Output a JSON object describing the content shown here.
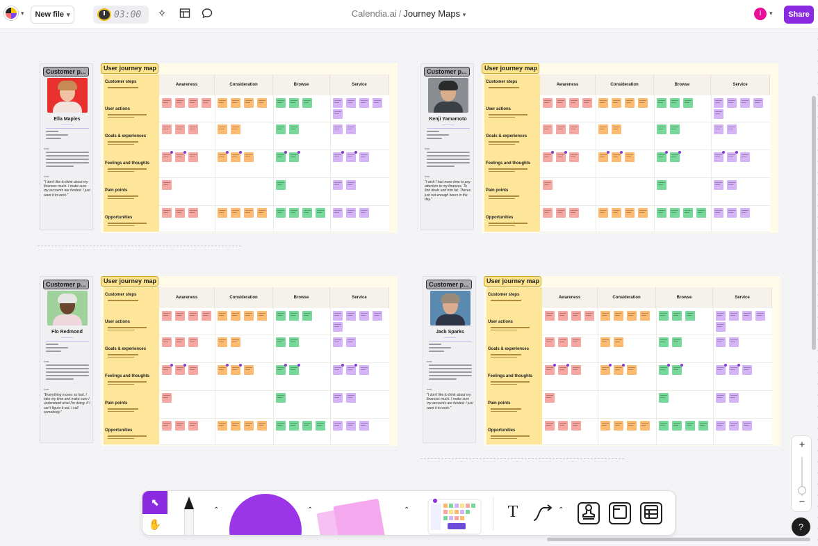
{
  "topbar": {
    "new_file_label": "New file",
    "timer": "03:00",
    "breadcrumb_workspace": "Calendia.ai",
    "breadcrumb_separator": "/",
    "board_title": "Journey Maps",
    "user_initial": "I",
    "share_label": "Share"
  },
  "journey_common": {
    "tag": "User journey map",
    "persona_tag": "Customer p...",
    "stages": [
      "Awareness",
      "Consideration",
      "Browse",
      "Service"
    ],
    "rows": [
      "Customer steps",
      "User actions",
      "Goals & experiences",
      "Feelings and thoughts",
      "Pain points",
      "Opportunities"
    ]
  },
  "personas": [
    {
      "name": "Ella Maples",
      "quote": "\"I don't like to think about my finances much. I make sure my accounts are funded. I just want it to work.\"",
      "photo_bg": "#e8312f",
      "skin": "#f0c2a2",
      "hair": "#c88a55",
      "shirt": "#f2e4dc"
    },
    {
      "name": "Kenji Yamamoto",
      "quote": "\"I wish I had more time to pay attention to my finances. To find deals and trim fat. Theres just not enough hours in the day.\"",
      "photo_bg": "#8a8e93",
      "skin": "#d9ae8c",
      "hair": "#2a2a2a",
      "shirt": "#3b3f46"
    },
    {
      "name": "Flo Redmond",
      "quote": "\"Everything moves so fast. I take my time and make sure I understand what I'm doing. If I can't figure it out, I call somebody.\"",
      "photo_bg": "#9fd29a",
      "skin": "#6b4530",
      "hair": "#e8e6e2",
      "shirt": "#f0d6dd"
    },
    {
      "name": "Jack Sparks",
      "quote": "\"I don't like to think about my finances much. I make sure my accounts are funded. I just want it to work.\"",
      "photo_bg": "#5b8ab0",
      "skin": "#dcab8d",
      "hair": "#9a8a7a",
      "shirt": "#2d3544"
    }
  ],
  "colors": {
    "accent": "#8a2be2",
    "sticky_red": "#f7a7a1",
    "sticky_orange": "#fdbb72",
    "sticky_green": "#76d99a",
    "sticky_purple": "#d5b3f7"
  },
  "icons": {
    "logo": "app-logo-icon",
    "ai": "sparkle-icon",
    "layout": "layout-icon",
    "comment": "comment-bubble-icon",
    "select": "cursor-icon",
    "hand": "hand-icon",
    "text": "text-tool-icon",
    "connector": "connector-icon",
    "stamp": "stamp-icon",
    "frame": "frame-icon",
    "table": "table-icon",
    "help": "question-icon"
  },
  "zoom": {
    "plus": "+",
    "minus": "−"
  },
  "help_label": "?"
}
